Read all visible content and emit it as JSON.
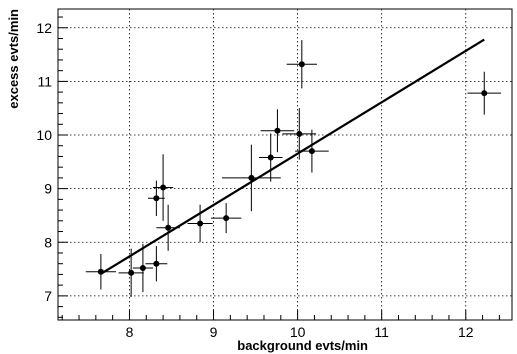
{
  "chart_data": {
    "type": "scatter",
    "title": "",
    "xlabel": "background evts/min",
    "ylabel": "excess evts/min",
    "xlim": [
      7.15,
      12.55
    ],
    "ylim": [
      6.55,
      12.35
    ],
    "x_ticks": [
      "8",
      "9",
      "10",
      "11",
      "12"
    ],
    "y_ticks": [
      "7",
      "8",
      "9",
      "10",
      "11",
      "12"
    ],
    "x_tick_values": [
      8,
      9,
      10,
      11,
      12
    ],
    "y_tick_values": [
      7,
      8,
      9,
      10,
      11,
      12
    ],
    "grid": true,
    "points": [
      {
        "x": 7.66,
        "y": 7.45,
        "xerr": 0.18,
        "yerr": 0.33
      },
      {
        "x": 8.02,
        "y": 7.43,
        "xerr": 0.15,
        "yerr": 0.45
      },
      {
        "x": 8.16,
        "y": 7.52,
        "xerr": 0.12,
        "yerr": 0.45
      },
      {
        "x": 8.32,
        "y": 7.6,
        "xerr": 0.13,
        "yerr": 0.33
      },
      {
        "x": 8.32,
        "y": 8.82,
        "xerr": 0.1,
        "yerr": 0.33
      },
      {
        "x": 8.4,
        "y": 9.02,
        "xerr": 0.12,
        "yerr": 0.62
      },
      {
        "x": 8.46,
        "y": 8.27,
        "xerr": 0.14,
        "yerr": 0.43
      },
      {
        "x": 8.84,
        "y": 8.35,
        "xerr": 0.15,
        "yerr": 0.35
      },
      {
        "x": 9.15,
        "y": 8.45,
        "xerr": 0.18,
        "yerr": 0.28
      },
      {
        "x": 9.45,
        "y": 9.2,
        "xerr": 0.35,
        "yerr": 0.62
      },
      {
        "x": 9.68,
        "y": 9.58,
        "xerr": 0.14,
        "yerr": 0.45
      },
      {
        "x": 9.76,
        "y": 10.08,
        "xerr": 0.2,
        "yerr": 0.4
      },
      {
        "x": 10.02,
        "y": 10.02,
        "xerr": 0.2,
        "yerr": 0.48
      },
      {
        "x": 10.05,
        "y": 11.32,
        "xerr": 0.18,
        "yerr": 0.45
      },
      {
        "x": 10.17,
        "y": 9.7,
        "xerr": 0.2,
        "yerr": 0.4
      },
      {
        "x": 12.22,
        "y": 10.78,
        "xerr": 0.2,
        "yerr": 0.4
      }
    ],
    "fit_line": {
      "x": [
        7.67,
        12.22
      ],
      "y": [
        7.42,
        11.78
      ]
    }
  }
}
